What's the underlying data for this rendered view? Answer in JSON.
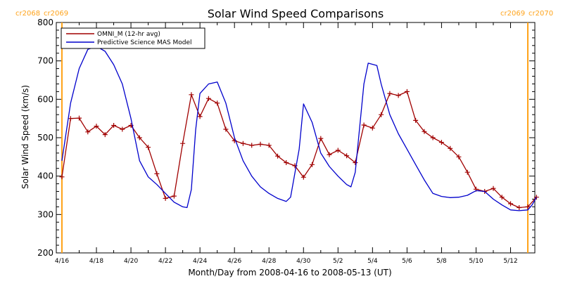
{
  "chart_data": {
    "type": "line",
    "title": "Solar Wind Speed Comparisons",
    "xlabel": "Month/Day from 2008-04-16 to 2008-05-13 (UT)",
    "ylabel": "Solar Wind Speed (km/s)",
    "xlim": [
      "2008-04-16",
      "2008-05-13"
    ],
    "ylim": [
      200,
      800
    ],
    "x_ticks": [
      "4/16",
      "4/18",
      "4/20",
      "4/22",
      "4/24",
      "4/26",
      "4/28",
      "4/30",
      "5/2",
      "5/4",
      "5/6",
      "5/8",
      "5/10",
      "5/12"
    ],
    "y_ticks": [
      200,
      300,
      400,
      500,
      600,
      700,
      800
    ],
    "grid": false,
    "legend_position": "top-left",
    "rotations": {
      "left": {
        "labels": [
          "cr2068",
          "cr2069"
        ],
        "date": "2008-04-16",
        "color": "#ffa31a"
      },
      "right": {
        "labels": [
          "cr2069",
          "cr2070"
        ],
        "date": "2008-05-13",
        "color": "#ffa31a"
      }
    },
    "series": [
      {
        "name": "OMNI_M (12-hr avg)",
        "color": "#a00000",
        "marker": "plus",
        "points": [
          [
            "2008-04-16 00:00",
            398
          ],
          [
            "2008-04-16 12:00",
            550
          ],
          [
            "2008-04-17 00:00",
            551
          ],
          [
            "2008-04-17 12:00",
            515
          ],
          [
            "2008-04-18 00:00",
            530
          ],
          [
            "2008-04-18 12:00",
            508
          ],
          [
            "2008-04-19 00:00",
            532
          ],
          [
            "2008-04-19 12:00",
            522
          ],
          [
            "2008-04-20 00:00",
            532
          ],
          [
            "2008-04-20 12:00",
            500
          ],
          [
            "2008-04-21 00:00",
            475
          ],
          [
            "2008-04-21 12:00",
            406
          ],
          [
            "2008-04-22 00:00",
            342
          ],
          [
            "2008-04-22 12:00",
            348
          ],
          [
            "2008-04-23 00:00",
            485
          ],
          [
            "2008-04-23 12:00",
            612
          ],
          [
            "2008-04-24 00:00",
            555
          ],
          [
            "2008-04-24 12:00",
            602
          ],
          [
            "2008-04-25 00:00",
            590
          ],
          [
            "2008-04-25 12:00",
            522
          ],
          [
            "2008-04-26 00:00",
            492
          ],
          [
            "2008-04-26 12:00",
            485
          ],
          [
            "2008-04-27 00:00",
            480
          ],
          [
            "2008-04-27 12:00",
            483
          ],
          [
            "2008-04-28 00:00",
            480
          ],
          [
            "2008-04-28 12:00",
            452
          ],
          [
            "2008-04-29 00:00",
            435
          ],
          [
            "2008-04-29 12:00",
            427
          ],
          [
            "2008-04-30 00:00",
            397
          ],
          [
            "2008-04-30 12:00",
            430
          ],
          [
            "2008-05-01 00:00",
            498
          ],
          [
            "2008-05-01 12:00",
            456
          ],
          [
            "2008-05-02 00:00",
            467
          ],
          [
            "2008-05-02 12:00",
            453
          ],
          [
            "2008-05-03 00:00",
            435
          ],
          [
            "2008-05-03 12:00",
            533
          ],
          [
            "2008-05-04 00:00",
            525
          ],
          [
            "2008-05-04 12:00",
            560
          ],
          [
            "2008-05-05 00:00",
            615
          ],
          [
            "2008-05-05 12:00",
            610
          ],
          [
            "2008-05-06 00:00",
            620
          ],
          [
            "2008-05-06 12:00",
            545
          ],
          [
            "2008-05-07 00:00",
            516
          ],
          [
            "2008-05-07 12:00",
            500
          ],
          [
            "2008-05-08 00:00",
            488
          ],
          [
            "2008-05-08 12:00",
            472
          ],
          [
            "2008-05-09 00:00",
            450
          ],
          [
            "2008-05-09 12:00",
            410
          ],
          [
            "2008-05-10 00:00",
            366
          ],
          [
            "2008-05-10 12:00",
            360
          ],
          [
            "2008-05-11 00:00",
            368
          ],
          [
            "2008-05-11 12:00",
            345
          ],
          [
            "2008-05-12 00:00",
            328
          ],
          [
            "2008-05-12 12:00",
            318
          ],
          [
            "2008-05-13 00:00",
            320
          ],
          [
            "2008-05-13 12:00",
            345
          ]
        ]
      },
      {
        "name": "Predictive Science MAS Model",
        "color": "#0000cc",
        "marker": "none",
        "points": [
          [
            "2008-04-16 00:00",
            440
          ],
          [
            "2008-04-16 12:00",
            590
          ],
          [
            "2008-04-17 00:00",
            680
          ],
          [
            "2008-04-17 12:00",
            730
          ],
          [
            "2008-04-18 00:00",
            738
          ],
          [
            "2008-04-18 12:00",
            725
          ],
          [
            "2008-04-19 00:00",
            690
          ],
          [
            "2008-04-19 12:00",
            640
          ],
          [
            "2008-04-20 00:00",
            550
          ],
          [
            "2008-04-20 12:00",
            440
          ],
          [
            "2008-04-21 00:00",
            398
          ],
          [
            "2008-04-21 12:00",
            378
          ],
          [
            "2008-04-22 00:00",
            355
          ],
          [
            "2008-04-22 12:00",
            332
          ],
          [
            "2008-04-23 00:00",
            320
          ],
          [
            "2008-04-23 06:00",
            318
          ],
          [
            "2008-04-23 12:00",
            365
          ],
          [
            "2008-04-23 18:00",
            520
          ],
          [
            "2008-04-24 00:00",
            615
          ],
          [
            "2008-04-24 12:00",
            640
          ],
          [
            "2008-04-25 00:00",
            645
          ],
          [
            "2008-04-25 12:00",
            590
          ],
          [
            "2008-04-26 00:00",
            500
          ],
          [
            "2008-04-26 12:00",
            440
          ],
          [
            "2008-04-27 00:00",
            400
          ],
          [
            "2008-04-27 12:00",
            372
          ],
          [
            "2008-04-28 00:00",
            355
          ],
          [
            "2008-04-28 12:00",
            342
          ],
          [
            "2008-04-29 00:00",
            334
          ],
          [
            "2008-04-29 06:00",
            345
          ],
          [
            "2008-04-29 18:00",
            470
          ],
          [
            "2008-04-30 00:00",
            588
          ],
          [
            "2008-04-30 12:00",
            540
          ],
          [
            "2008-05-01 00:00",
            460
          ],
          [
            "2008-05-01 12:00",
            425
          ],
          [
            "2008-05-02 00:00",
            400
          ],
          [
            "2008-05-02 12:00",
            378
          ],
          [
            "2008-05-02 18:00",
            372
          ],
          [
            "2008-05-03 00:00",
            410
          ],
          [
            "2008-05-03 12:00",
            640
          ],
          [
            "2008-05-03 18:00",
            694
          ],
          [
            "2008-05-04 06:00",
            688
          ],
          [
            "2008-05-04 12:00",
            640
          ],
          [
            "2008-05-05 00:00",
            560
          ],
          [
            "2008-05-05 12:00",
            510
          ],
          [
            "2008-05-06 00:00",
            470
          ],
          [
            "2008-05-06 12:00",
            430
          ],
          [
            "2008-05-07 00:00",
            390
          ],
          [
            "2008-05-07 12:00",
            355
          ],
          [
            "2008-05-08 00:00",
            347
          ],
          [
            "2008-05-08 12:00",
            344
          ],
          [
            "2008-05-09 00:00",
            345
          ],
          [
            "2008-05-09 12:00",
            350
          ],
          [
            "2008-05-10 00:00",
            362
          ],
          [
            "2008-05-10 12:00",
            360
          ],
          [
            "2008-05-11 00:00",
            340
          ],
          [
            "2008-05-11 12:00",
            325
          ],
          [
            "2008-05-12 00:00",
            312
          ],
          [
            "2008-05-12 12:00",
            310
          ],
          [
            "2008-05-13 00:00",
            312
          ],
          [
            "2008-05-13 06:00",
            325
          ],
          [
            "2008-05-13 12:00",
            345
          ]
        ]
      }
    ]
  }
}
